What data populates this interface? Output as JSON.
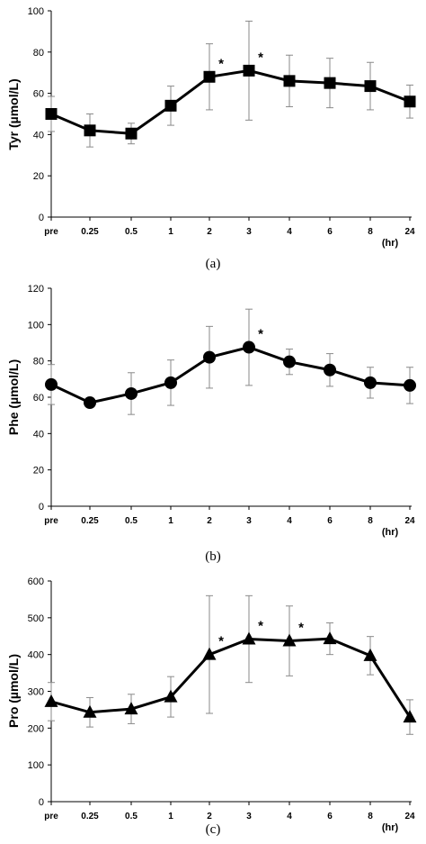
{
  "chart_data": [
    {
      "type": "line",
      "caption": "(a)",
      "ylabel": "Tyr (µmol/L)",
      "xunit": "(hr)",
      "categories": [
        "pre",
        "0.25",
        "0.5",
        "1",
        "2",
        "3",
        "4",
        "6",
        "8",
        "24"
      ],
      "ylim": [
        0,
        100
      ],
      "yticks": [
        0,
        20,
        40,
        60,
        80,
        100
      ],
      "marker": "square",
      "series": [
        {
          "values": [
            50,
            42,
            40.5,
            54,
            68,
            71,
            66,
            65,
            63.5,
            56
          ],
          "error": [
            8.5,
            8,
            5,
            9.5,
            16,
            24,
            12.5,
            12,
            11.5,
            8
          ],
          "significant": [
            false,
            false,
            false,
            false,
            true,
            true,
            false,
            false,
            false,
            false
          ]
        }
      ],
      "annotation_symbol": "*"
    },
    {
      "type": "line",
      "caption": "(b)",
      "ylabel": "Phe (µmol/L)",
      "xunit": "(hr)",
      "categories": [
        "pre",
        "0.25",
        "0.5",
        "1",
        "2",
        "3",
        "4",
        "6",
        "8",
        "24"
      ],
      "ylim": [
        0,
        120
      ],
      "yticks": [
        0,
        20,
        40,
        60,
        80,
        100,
        120
      ],
      "marker": "circle",
      "series": [
        {
          "values": [
            67,
            57,
            62,
            68,
            82,
            87.5,
            79.5,
            75,
            68,
            66.5
          ],
          "error": [
            11,
            0,
            11.5,
            12.5,
            17,
            21,
            7,
            9,
            8.5,
            10
          ],
          "significant": [
            false,
            false,
            false,
            false,
            false,
            true,
            false,
            false,
            false,
            false
          ]
        }
      ],
      "annotation_symbol": "*"
    },
    {
      "type": "line",
      "caption": "(c)",
      "ylabel": "Pro (µmol/L)",
      "xunit": "(hr)",
      "categories": [
        "pre",
        "0.25",
        "0.5",
        "1",
        "2",
        "3",
        "4",
        "6",
        "8",
        "24"
      ],
      "ylim": [
        0,
        600
      ],
      "yticks": [
        0,
        100,
        200,
        300,
        400,
        500,
        600
      ],
      "marker": "triangle",
      "series": [
        {
          "values": [
            272,
            243,
            252,
            285,
            400,
            442,
            437,
            443,
            397,
            230
          ],
          "error": [
            52,
            40,
            40,
            55,
            160,
            118,
            95,
            43,
            52,
            47
          ],
          "significant": [
            false,
            false,
            false,
            false,
            true,
            true,
            true,
            false,
            false,
            false
          ]
        }
      ],
      "annotation_symbol": "*"
    }
  ]
}
